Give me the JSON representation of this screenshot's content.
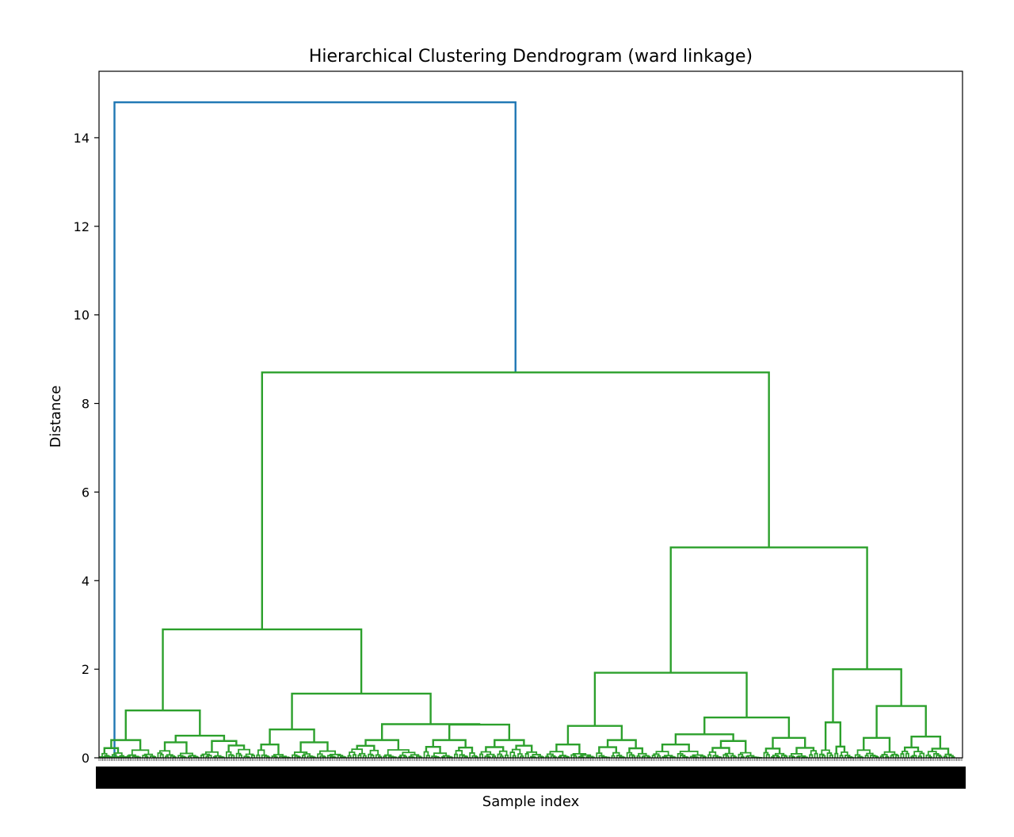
{
  "chart_data": {
    "type": "dendrogram",
    "title": "Hierarchical Clustering Dendrogram (ward linkage)",
    "xlabel": "Sample index",
    "ylabel": "Distance",
    "ylim": [
      0,
      15.5
    ],
    "yticks": [
      0,
      2,
      4,
      6,
      8,
      10,
      12,
      14
    ],
    "x_tick_labels_note": "densely overlapping sample index labels (illegible)",
    "colors": {
      "root": "#1f77b4",
      "cluster": "#2ca02c",
      "leaf_baseline": "#d62728",
      "frame": "#000000"
    },
    "merges": [
      {
        "name": "root",
        "height": 14.8,
        "color": "root"
      },
      {
        "name": "main-cluster",
        "height": 8.7,
        "color": "cluster"
      },
      {
        "name": "left-group",
        "height": 2.9,
        "color": "cluster"
      },
      {
        "name": "right-group",
        "height": 4.75,
        "color": "cluster"
      },
      {
        "name": "left-a",
        "height": 1.07,
        "color": "cluster"
      },
      {
        "name": "left-b",
        "height": 1.45,
        "color": "cluster"
      },
      {
        "name": "left-b1",
        "height": 0.64,
        "color": "cluster"
      },
      {
        "name": "left-b2",
        "height": 0.76,
        "color": "cluster"
      },
      {
        "name": "right-a",
        "height": 1.92,
        "color": "cluster"
      },
      {
        "name": "right-a1",
        "height": 0.72,
        "color": "cluster"
      },
      {
        "name": "right-a2",
        "height": 0.91,
        "color": "cluster"
      },
      {
        "name": "right-a2b",
        "height": 0.53,
        "color": "cluster"
      },
      {
        "name": "right-b",
        "height": 2.0,
        "color": "cluster"
      },
      {
        "name": "right-b1",
        "height": 1.17,
        "color": "cluster"
      },
      {
        "name": "right-b0",
        "height": 0.8,
        "color": "cluster"
      }
    ]
  }
}
